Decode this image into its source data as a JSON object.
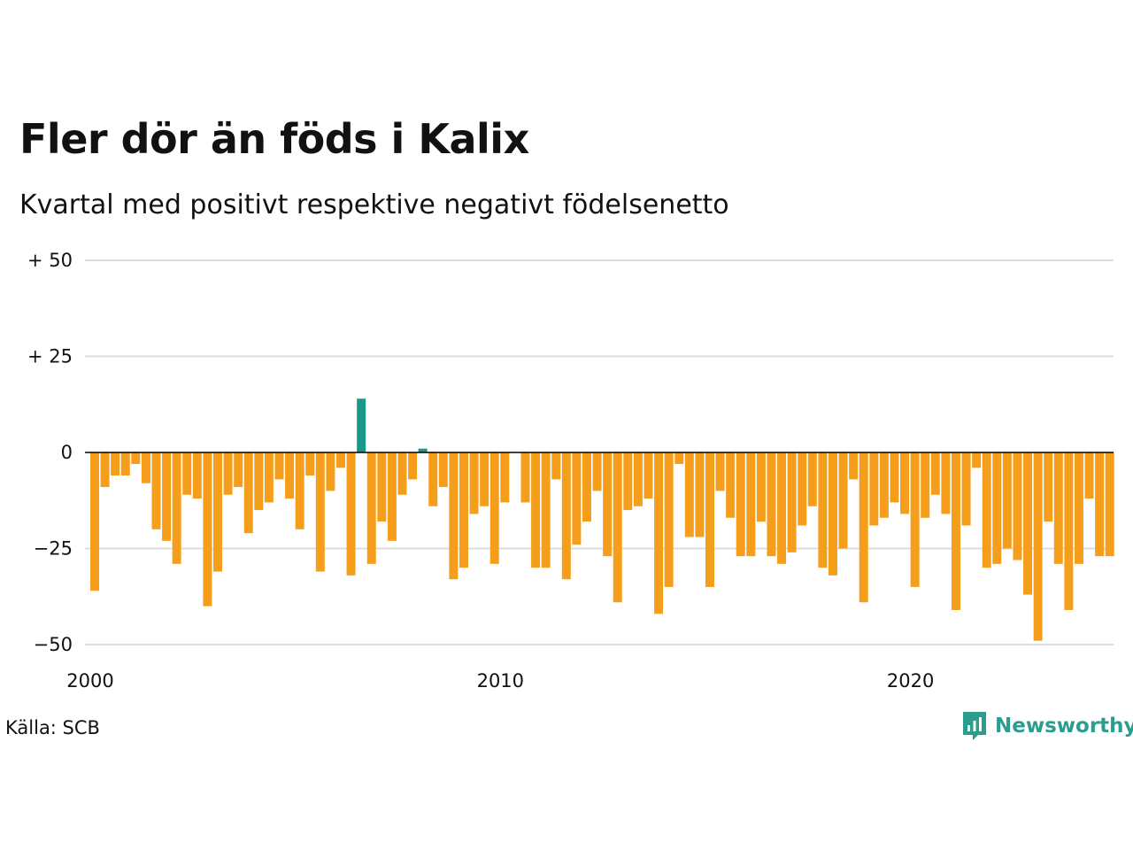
{
  "title": "Fler dör än föds i Kalix",
  "subtitle": "Kvartal med positivt respektive negativt födelsenetto",
  "source": "Källa: SCB",
  "brand": "Newsworthy",
  "colors": {
    "positive": "#1a9988",
    "negative": "#f59e1c",
    "grid": "#dddddd",
    "zero": "#000000",
    "brand": "#2a9d8f"
  },
  "chart_data": {
    "type": "bar",
    "title": "Fler dör än föds i Kalix",
    "subtitle": "Kvartal med positivt respektive negativt födelsenetto",
    "xlabel": "",
    "ylabel": "",
    "ylim": [
      -50,
      50
    ],
    "grid": true,
    "y_ticks": [
      50,
      25,
      0,
      -25,
      -50
    ],
    "y_tick_labels": [
      "+ 50",
      "+ 25",
      "0",
      "−25",
      "−50"
    ],
    "x_ticks": [
      2000,
      2010,
      2020
    ],
    "x_tick_labels": [
      "2000",
      "2010",
      "2020"
    ],
    "x_start": 2000,
    "x_step": 0.25,
    "values": [
      -36,
      -9,
      -6,
      -6,
      -3,
      -8,
      -20,
      -23,
      -29,
      -11,
      -12,
      -40,
      -31,
      -11,
      -9,
      -21,
      -15,
      -13,
      -7,
      -12,
      -20,
      -6,
      -31,
      -10,
      -4,
      -32,
      14,
      -29,
      -18,
      -23,
      -11,
      -7,
      1,
      -14,
      -9,
      -33,
      -30,
      -16,
      -14,
      -29,
      -13,
      0,
      -13,
      -30,
      -30,
      -7,
      -33,
      -24,
      -18,
      -10,
      -27,
      -39,
      -15,
      -14,
      -12,
      -42,
      -35,
      -3,
      -22,
      -22,
      -35,
      -10,
      -17,
      -27,
      -27,
      -18,
      -27,
      -29,
      -26,
      -19,
      -14,
      -30,
      -32,
      -25,
      -7,
      -39,
      -19,
      -17,
      -13,
      -16,
      -35,
      -17,
      -11,
      -16,
      -41,
      -19,
      -4,
      -30,
      -29,
      -25,
      -28,
      -37,
      -49,
      -18,
      -29,
      -41,
      -29,
      -12,
      -27,
      -27
    ]
  }
}
